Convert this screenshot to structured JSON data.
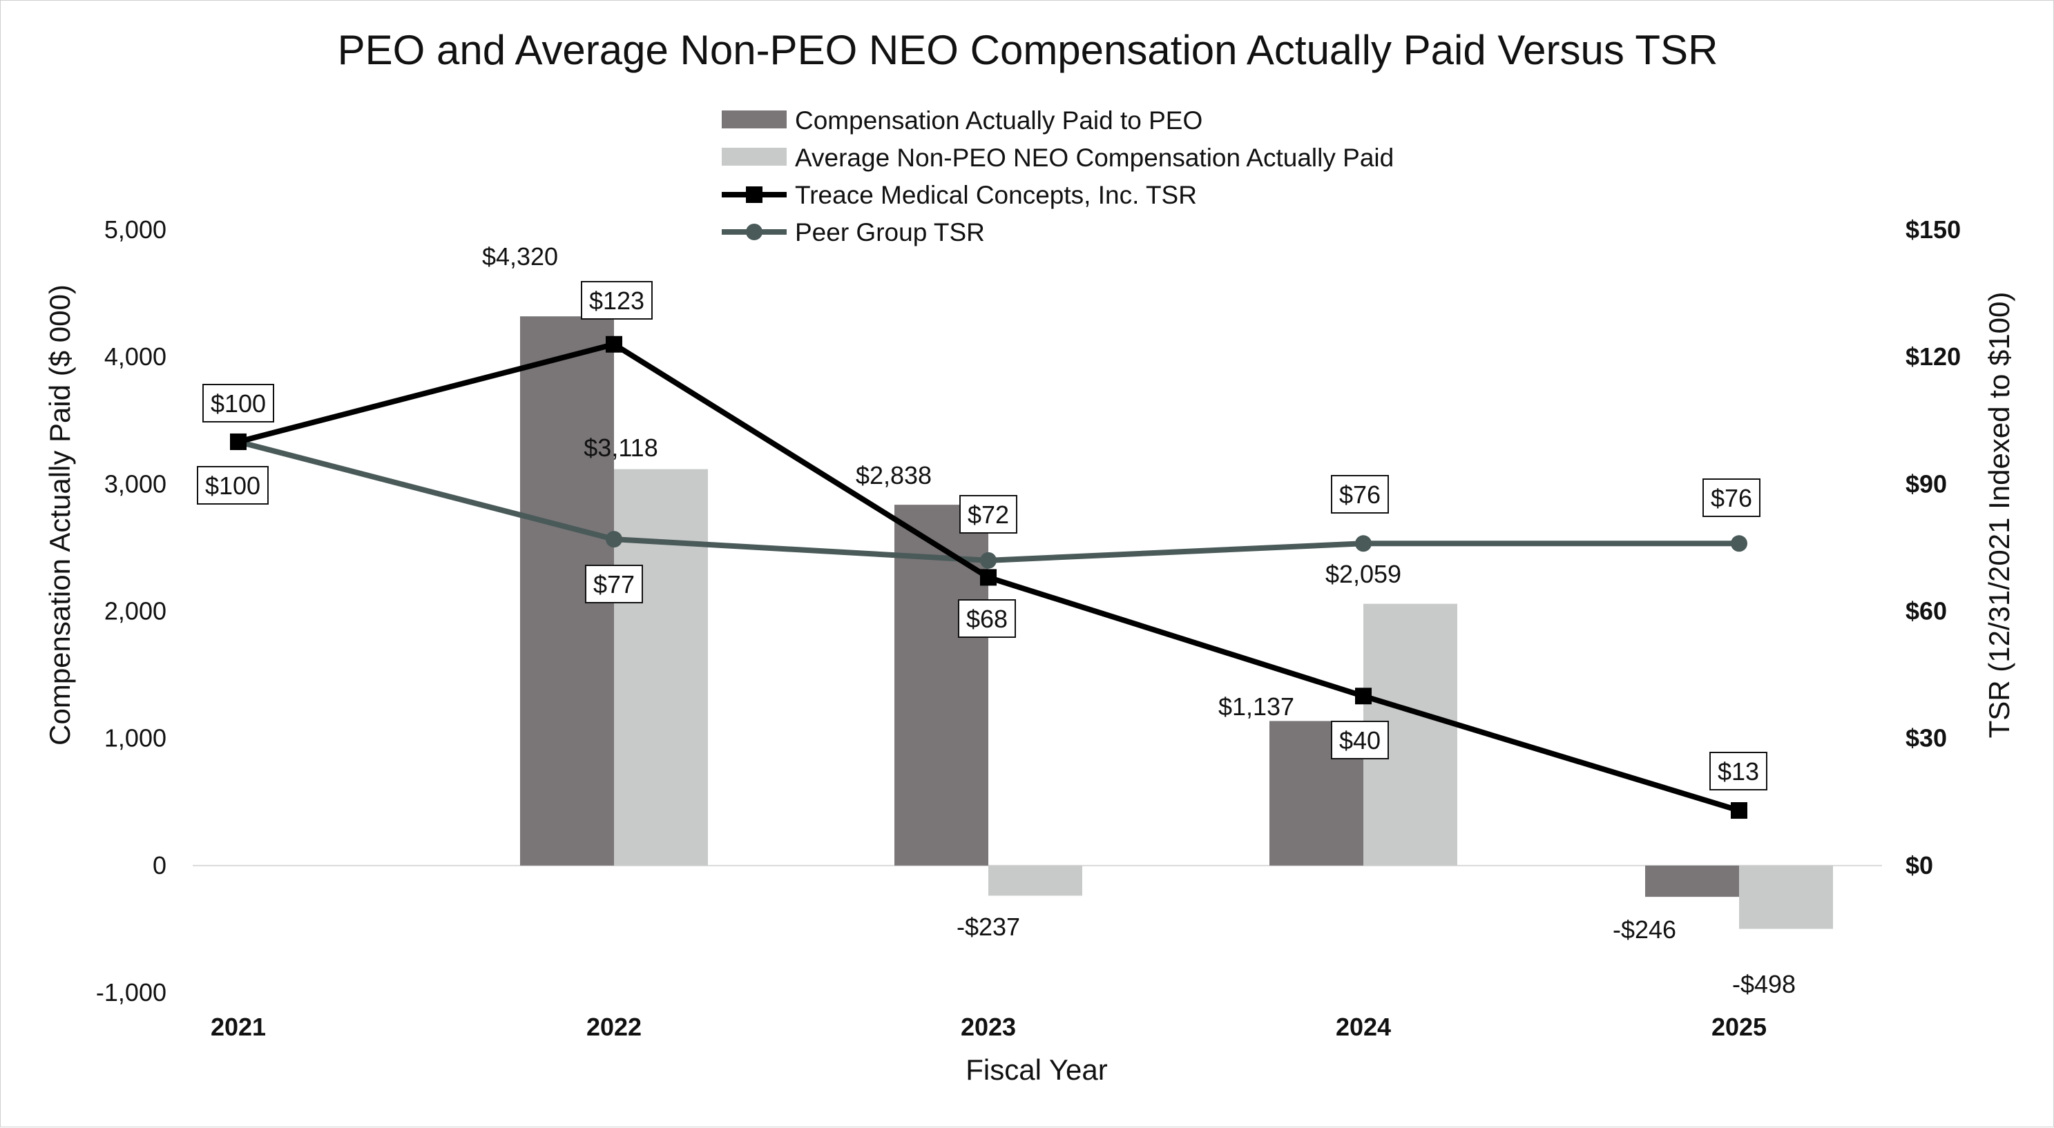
{
  "chart_data": {
    "type": "bar",
    "title": "PEO and Average Non-PEO NEO Compensation Actually Paid Versus TSR",
    "xlabel": "Fiscal Year",
    "ylabel": "Compensation Actually Paid ($ 000)",
    "y2label": "TSR (12/31/2021 Indexed to $100)",
    "categories": [
      "2021",
      "2022",
      "2023",
      "2024",
      "2025"
    ],
    "ylim": [
      -1000,
      5000
    ],
    "y_ticks": [
      "5,000",
      "4,000",
      "3,000",
      "2,000",
      "1,000",
      "0",
      "-1,000"
    ],
    "y2lim": [
      0,
      150
    ],
    "y2_ticks": [
      "$150",
      "$120",
      "$90",
      "$60",
      "$30",
      "$0"
    ],
    "legend_position": "top-center",
    "grid": false,
    "series": [
      {
        "name": "Compensation Actually Paid to PEO",
        "kind": "bar",
        "axis": "left",
        "color": "#7a7678",
        "values": [
          null,
          4320,
          2838,
          1137,
          -246
        ],
        "labels": [
          "",
          "$4,320",
          "$2,838",
          "$1,137",
          "-$246"
        ]
      },
      {
        "name": "Average Non-PEO NEO Compensation Actually Paid",
        "kind": "bar",
        "axis": "left",
        "color": "#c8cac9",
        "values": [
          null,
          3118,
          -237,
          2059,
          -498
        ],
        "labels": [
          "",
          "$3,118",
          "-$237",
          "$2,059",
          "-$498"
        ]
      },
      {
        "name": "Treace Medical Concepts, Inc. TSR",
        "kind": "line",
        "axis": "right",
        "marker": "square",
        "color": "#000000",
        "values": [
          100,
          123,
          68,
          40,
          13
        ],
        "labels": [
          "$100",
          "$123",
          "$68",
          "$40",
          "$13"
        ]
      },
      {
        "name": "Peer Group TSR",
        "kind": "line",
        "axis": "right",
        "marker": "circle",
        "color": "#4a5a59",
        "values": [
          100,
          77,
          72,
          76,
          76
        ],
        "labels": [
          "$100",
          "$77",
          "$72",
          "$76",
          "$76"
        ]
      }
    ]
  }
}
